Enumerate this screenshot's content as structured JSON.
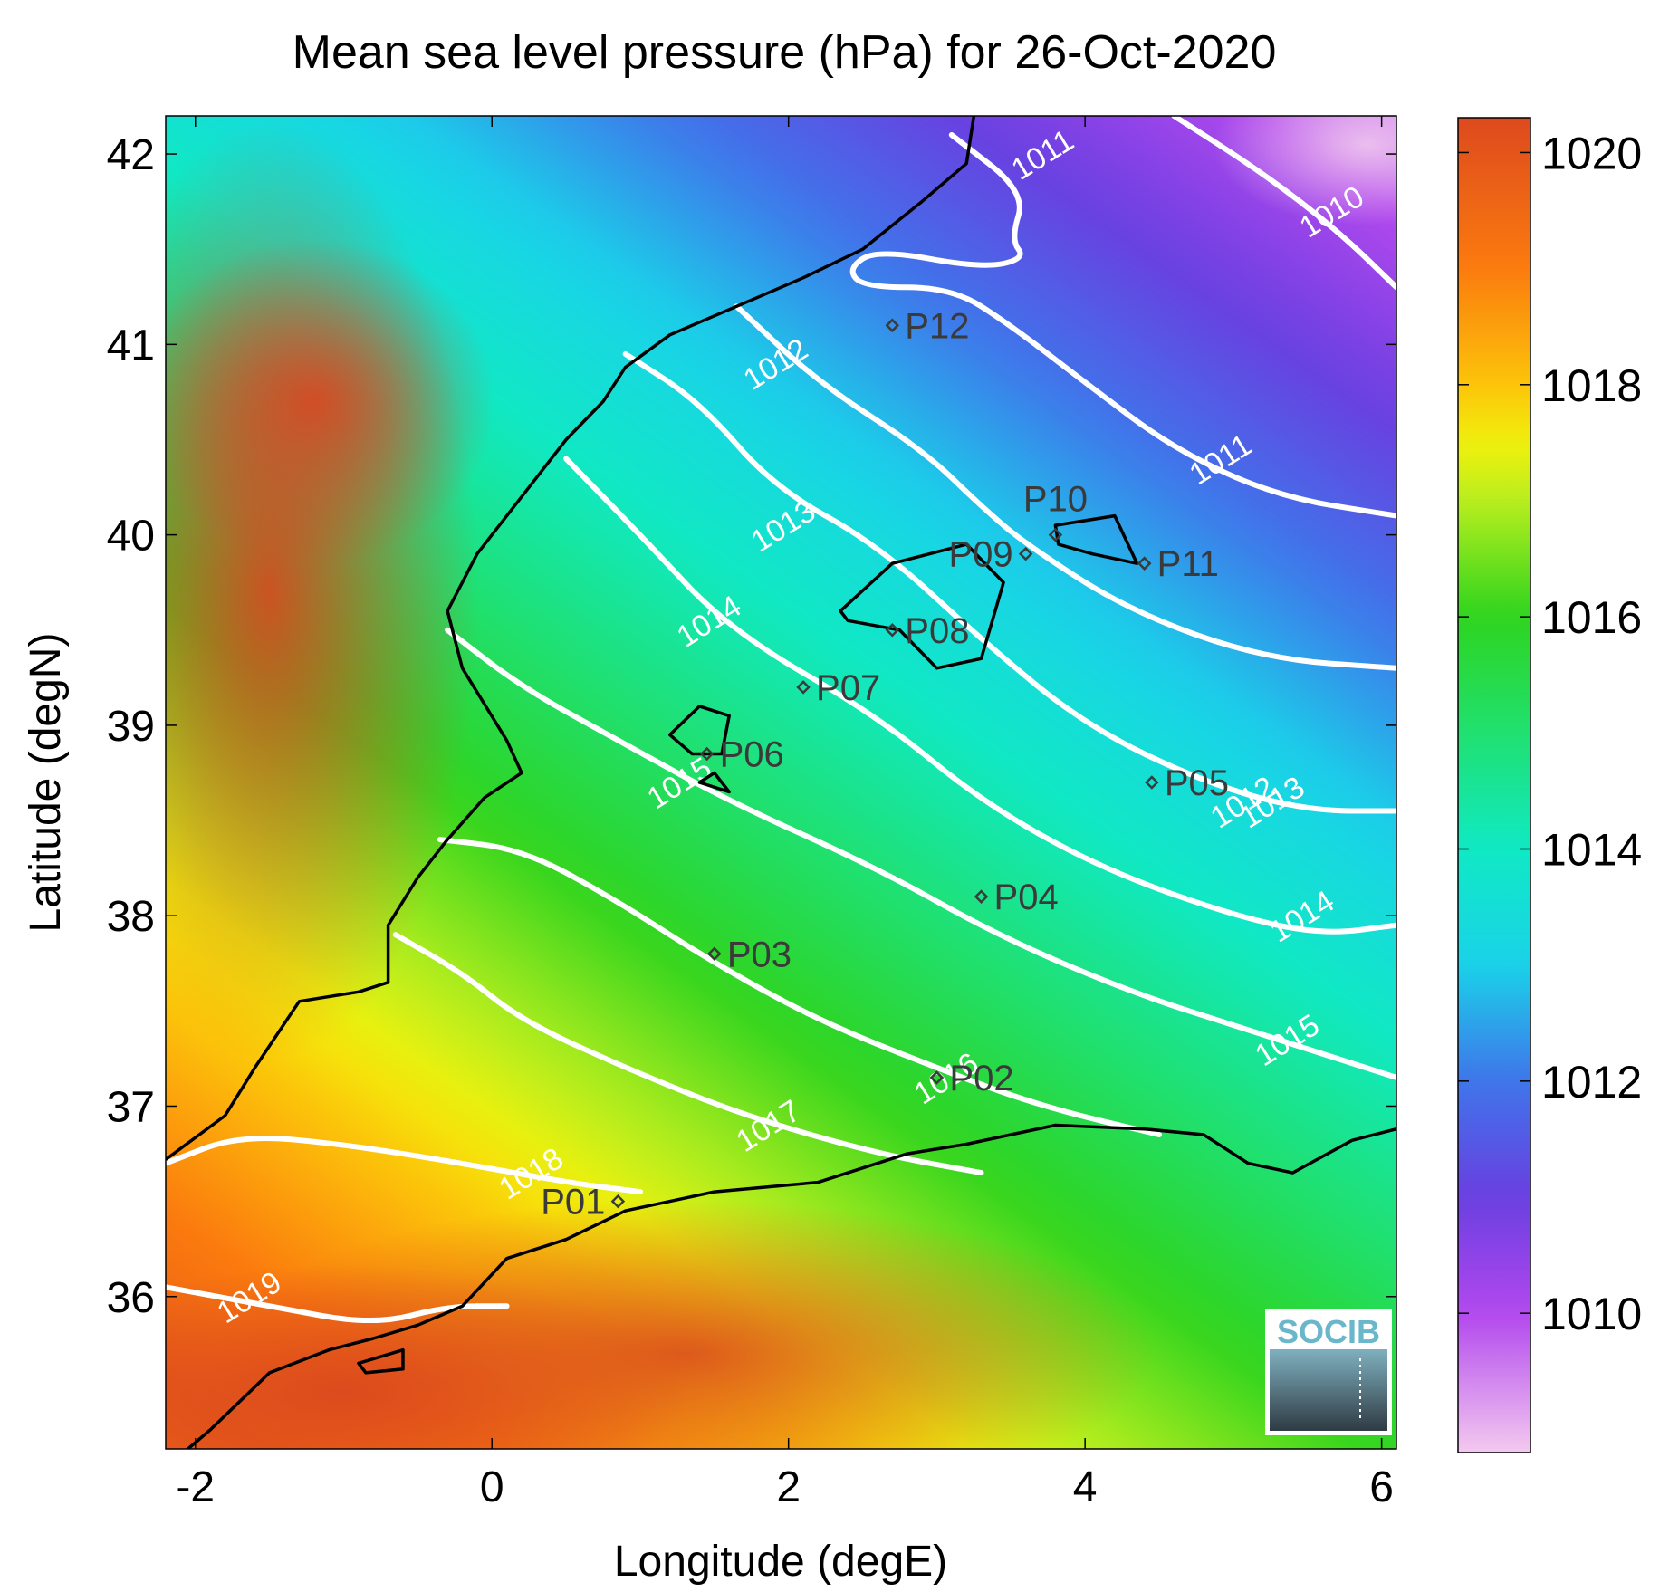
{
  "figure": {
    "title": "Mean sea level pressure (hPa) for 26-Oct-2020",
    "xlabel": "Longitude (degE)",
    "ylabel": "Latitude (degN)",
    "logo_text": "SOCIB"
  },
  "chart_data": {
    "type": "heatmap",
    "title": "Mean sea level pressure (hPa) for 26-Oct-2020",
    "xlabel": "Longitude (degE)",
    "ylabel": "Latitude (degN)",
    "xlim": [
      -2.2,
      6.1
    ],
    "ylim": [
      35.2,
      42.2
    ],
    "x_ticks": [
      -2,
      0,
      2,
      4,
      6
    ],
    "y_ticks": [
      36,
      37,
      38,
      39,
      40,
      41,
      42
    ],
    "colorbar": {
      "range": [
        1008.8,
        1020.3
      ],
      "ticks": [
        1010,
        1012,
        1014,
        1016,
        1018,
        1020
      ],
      "stops": [
        {
          "value": 1008.8,
          "color": "#f3c9ef"
        },
        {
          "value": 1010.0,
          "color": "#b248ee"
        },
        {
          "value": 1011.0,
          "color": "#6a3fe0"
        },
        {
          "value": 1012.0,
          "color": "#3f75ea"
        },
        {
          "value": 1013.0,
          "color": "#1ad2e9"
        },
        {
          "value": 1014.0,
          "color": "#10e9c4"
        },
        {
          "value": 1015.0,
          "color": "#20e070"
        },
        {
          "value": 1016.0,
          "color": "#2ed41e"
        },
        {
          "value": 1017.0,
          "color": "#b8ee1e"
        },
        {
          "value": 1017.5,
          "color": "#f2f10c"
        },
        {
          "value": 1018.0,
          "color": "#fcc40a"
        },
        {
          "value": 1019.0,
          "color": "#fb7b0e"
        },
        {
          "value": 1020.3,
          "color": "#dd4a1e"
        }
      ]
    },
    "contours": [
      {
        "level": "1010",
        "label_at": [
          [
            5.7,
            41.65
          ]
        ],
        "points": [
          [
            4.6,
            42.2
          ],
          [
            5.2,
            41.9
          ],
          [
            5.7,
            41.6
          ],
          [
            6.1,
            41.3
          ]
        ]
      },
      {
        "level": "1011",
        "label_at": [
          [
            3.75,
            41.95
          ],
          [
            4.95,
            40.35
          ]
        ],
        "points": [
          [
            3.1,
            42.1
          ],
          [
            3.6,
            41.8
          ],
          [
            3.5,
            41.55
          ],
          [
            3.6,
            41.45
          ],
          [
            3.3,
            41.4
          ],
          [
            2.6,
            41.5
          ],
          [
            2.4,
            41.4
          ],
          [
            2.5,
            41.3
          ],
          [
            3.1,
            41.3
          ],
          [
            3.5,
            41.1
          ],
          [
            4.0,
            40.8
          ],
          [
            4.6,
            40.45
          ],
          [
            5.3,
            40.2
          ],
          [
            6.1,
            40.1
          ]
        ]
      },
      {
        "level": "1012",
        "label_at": [
          [
            1.95,
            40.85
          ],
          [
            5.1,
            38.55
          ]
        ],
        "points": [
          [
            1.65,
            41.2
          ],
          [
            2.2,
            40.8
          ],
          [
            2.9,
            40.45
          ],
          [
            3.3,
            40.15
          ],
          [
            3.6,
            39.95
          ],
          [
            4.3,
            39.6
          ],
          [
            5.2,
            39.35
          ],
          [
            6.1,
            39.3
          ]
        ]
      },
      {
        "level": "1013",
        "label_at": [
          [
            2.0,
            40.0
          ],
          [
            5.3,
            38.55
          ]
        ],
        "points": [
          [
            0.9,
            40.95
          ],
          [
            1.4,
            40.7
          ],
          [
            1.9,
            40.25
          ],
          [
            2.6,
            39.95
          ],
          [
            3.3,
            39.45
          ],
          [
            4.0,
            39.0
          ],
          [
            4.8,
            38.7
          ],
          [
            5.5,
            38.55
          ],
          [
            6.1,
            38.55
          ]
        ]
      },
      {
        "level": "1014",
        "label_at": [
          [
            1.5,
            39.5
          ],
          [
            5.5,
            37.95
          ]
        ],
        "points": [
          [
            0.5,
            40.4
          ],
          [
            1.0,
            40.0
          ],
          [
            1.6,
            39.5
          ],
          [
            2.6,
            39.05
          ],
          [
            3.3,
            38.6
          ],
          [
            4.1,
            38.25
          ],
          [
            5.0,
            38.0
          ],
          [
            5.6,
            37.9
          ],
          [
            6.1,
            37.95
          ]
        ]
      },
      {
        "level": "1015",
        "label_at": [
          [
            1.3,
            38.65
          ],
          [
            5.4,
            37.3
          ]
        ],
        "points": [
          [
            -0.3,
            39.5
          ],
          [
            0.2,
            39.2
          ],
          [
            0.9,
            38.9
          ],
          [
            1.6,
            38.6
          ],
          [
            2.6,
            38.25
          ],
          [
            3.4,
            37.9
          ],
          [
            4.3,
            37.6
          ],
          [
            5.1,
            37.4
          ],
          [
            5.7,
            37.25
          ],
          [
            6.1,
            37.15
          ]
        ]
      },
      {
        "level": "1016",
        "label_at": [
          [
            3.1,
            37.1
          ]
        ],
        "points": [
          [
            -0.35,
            38.4
          ],
          [
            0.2,
            38.35
          ],
          [
            0.8,
            38.1
          ],
          [
            1.5,
            37.75
          ],
          [
            2.2,
            37.45
          ],
          [
            3.0,
            37.2
          ],
          [
            3.7,
            37.0
          ],
          [
            4.5,
            36.85
          ]
        ]
      },
      {
        "level": "1017",
        "label_at": [
          [
            1.9,
            36.85
          ]
        ],
        "points": [
          [
            -0.65,
            37.9
          ],
          [
            -0.2,
            37.7
          ],
          [
            0.2,
            37.45
          ],
          [
            0.9,
            37.2
          ],
          [
            1.7,
            36.95
          ],
          [
            2.6,
            36.75
          ],
          [
            3.3,
            36.65
          ]
        ]
      },
      {
        "level": "1018",
        "label_at": [
          [
            0.3,
            36.6
          ]
        ],
        "points": [
          [
            -2.2,
            36.7
          ],
          [
            -1.7,
            36.85
          ],
          [
            -1.0,
            36.8
          ],
          [
            -0.2,
            36.7
          ],
          [
            0.5,
            36.6
          ],
          [
            1.0,
            36.55
          ]
        ]
      },
      {
        "level": "1019",
        "label_at": [
          [
            -1.6,
            35.95
          ]
        ],
        "points": [
          [
            -2.2,
            36.05
          ],
          [
            -1.5,
            35.95
          ],
          [
            -0.8,
            35.85
          ],
          [
            -0.3,
            35.95
          ],
          [
            0.1,
            35.95
          ]
        ]
      }
    ],
    "stations": [
      {
        "name": "P01",
        "lon": 0.85,
        "lat": 36.5,
        "label_side": "left"
      },
      {
        "name": "P02",
        "lon": 3.0,
        "lat": 37.15,
        "label_side": "right"
      },
      {
        "name": "P03",
        "lon": 1.5,
        "lat": 37.8,
        "label_side": "right"
      },
      {
        "name": "P04",
        "lon": 3.3,
        "lat": 38.1,
        "label_side": "right"
      },
      {
        "name": "P05",
        "lon": 4.45,
        "lat": 38.7,
        "label_side": "right"
      },
      {
        "name": "P06",
        "lon": 1.45,
        "lat": 38.85,
        "label_side": "right"
      },
      {
        "name": "P07",
        "lon": 2.1,
        "lat": 39.2,
        "label_side": "right"
      },
      {
        "name": "P08",
        "lon": 2.7,
        "lat": 39.5,
        "label_side": "right"
      },
      {
        "name": "P09",
        "lon": 3.6,
        "lat": 39.9,
        "label_side": "left"
      },
      {
        "name": "P10",
        "lon": 3.8,
        "lat": 40.0,
        "label_side": "above"
      },
      {
        "name": "P11",
        "lon": 4.4,
        "lat": 39.85,
        "label_side": "right"
      },
      {
        "name": "P12",
        "lon": 2.7,
        "lat": 41.1,
        "label_side": "right"
      }
    ]
  }
}
